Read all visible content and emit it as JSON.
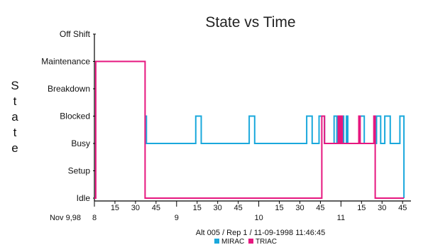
{
  "chart_data": {
    "type": "line",
    "step": true,
    "title": "State vs Time",
    "ylabel": "State",
    "date_label": "Nov 9,98",
    "footnote": "Alt 005 / Rep 1 / 11-09-1998 11:46:45",
    "states": [
      "Idle",
      "Setup",
      "Busy",
      "Blocked",
      "Breakdown",
      "Maintenance",
      "Off Shift"
    ],
    "xlim": [
      "08:00",
      "11:48"
    ],
    "major_ticks": [
      {
        "time": "08:00",
        "label": "8"
      },
      {
        "time": "09:00",
        "label": "9"
      },
      {
        "time": "10:00",
        "label": "10"
      },
      {
        "time": "11:00",
        "label": "11"
      }
    ],
    "minor_ticks": [
      {
        "time": "08:15",
        "label": "15"
      },
      {
        "time": "08:30",
        "label": "30"
      },
      {
        "time": "08:45",
        "label": "45"
      },
      {
        "time": "09:15",
        "label": "15"
      },
      {
        "time": "09:30",
        "label": "30"
      },
      {
        "time": "09:45",
        "label": "45"
      },
      {
        "time": "10:15",
        "label": "15"
      },
      {
        "time": "10:30",
        "label": "30"
      },
      {
        "time": "10:45",
        "label": "45"
      },
      {
        "time": "11:15",
        "label": "15"
      },
      {
        "time": "11:30",
        "label": "30"
      },
      {
        "time": "11:45",
        "label": "45"
      }
    ],
    "series": [
      {
        "name": "MIRAC",
        "color": "#1aa8dc",
        "points": [
          {
            "time": "08:37",
            "state": "Blocked"
          },
          {
            "time": "08:38",
            "state": "Busy"
          },
          {
            "time": "09:14",
            "state": "Blocked"
          },
          {
            "time": "09:18",
            "state": "Busy"
          },
          {
            "time": "09:53",
            "state": "Blocked"
          },
          {
            "time": "09:57",
            "state": "Busy"
          },
          {
            "time": "10:35",
            "state": "Blocked"
          },
          {
            "time": "10:39",
            "state": "Busy"
          },
          {
            "time": "10:44",
            "state": "Blocked"
          },
          {
            "time": "10:48",
            "state": "Busy"
          },
          {
            "time": "10:55",
            "state": "Blocked"
          },
          {
            "time": "10:57",
            "state": "Busy"
          },
          {
            "time": "11:01",
            "state": "Blocked"
          },
          {
            "time": "11:02",
            "state": "Busy"
          },
          {
            "time": "11:04",
            "state": "Blocked"
          },
          {
            "time": "11:05",
            "state": "Busy"
          },
          {
            "time": "11:13",
            "state": "Blocked"
          },
          {
            "time": "11:17",
            "state": "Busy"
          },
          {
            "time": "11:26",
            "state": "Blocked"
          },
          {
            "time": "11:29",
            "state": "Busy"
          },
          {
            "time": "11:32",
            "state": "Blocked"
          },
          {
            "time": "11:36",
            "state": "Busy"
          },
          {
            "time": "11:43",
            "state": "Blocked"
          },
          {
            "time": "11:46",
            "state": "Idle"
          }
        ]
      },
      {
        "name": "TRIAC",
        "color": "#e6177f",
        "points": [
          {
            "time": "08:00",
            "state": "Idle"
          },
          {
            "time": "08:01",
            "state": "Maintenance"
          },
          {
            "time": "08:37",
            "state": "Idle"
          },
          {
            "time": "10:46",
            "state": "Blocked"
          },
          {
            "time": "10:48",
            "state": "Busy"
          },
          {
            "time": "10:58",
            "state": "Blocked"
          },
          {
            "time": "10:59",
            "state": "Busy"
          },
          {
            "time": "11:00",
            "state": "Blocked"
          },
          {
            "time": "11:01",
            "state": "Busy"
          },
          {
            "time": "11:13",
            "state": "Blocked"
          },
          {
            "time": "11:14",
            "state": "Busy"
          },
          {
            "time": "11:24",
            "state": "Blocked"
          },
          {
            "time": "11:25",
            "state": "Idle"
          },
          {
            "time": "11:46",
            "state": "Idle"
          }
        ]
      }
    ]
  }
}
